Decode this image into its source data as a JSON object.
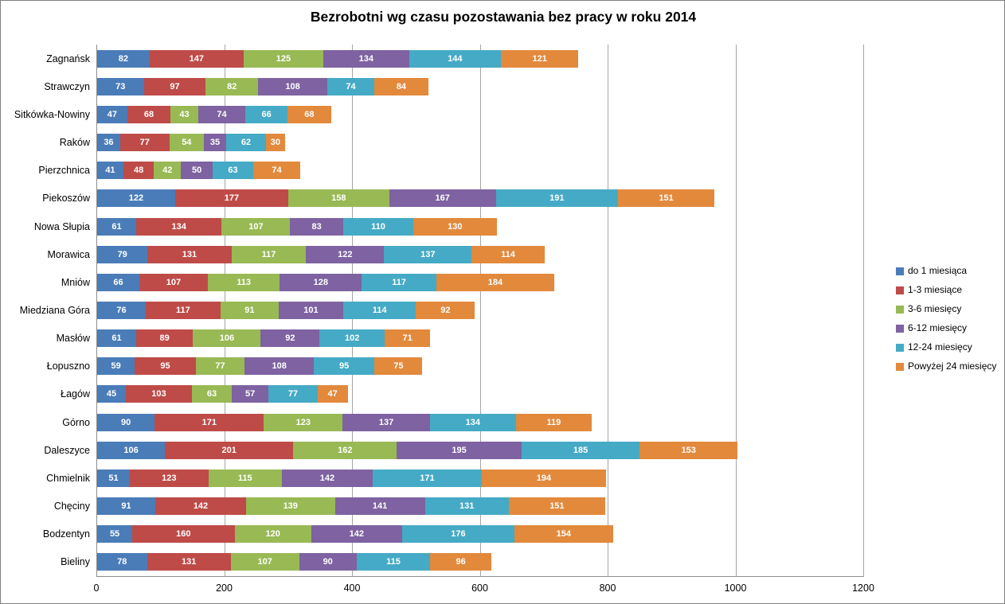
{
  "chart_data": {
    "type": "bar",
    "orientation": "horizontal",
    "stacked": true,
    "title": "Bezrobotni wg czasu pozostawania bez pracy w roku 2014",
    "categories": [
      "Zagnańsk",
      "Strawczyn",
      "Sitkówka-Nowiny",
      "Raków",
      "Pierzchnica",
      "Piekoszów",
      "Nowa Słupia",
      "Morawica",
      "Mniów",
      "Miedziana Góra",
      "Masłów",
      "Łopuszno",
      "Łagów",
      "Górno",
      "Daleszyce",
      "Chmielnik",
      "Chęciny",
      "Bodzentyn",
      "Bieliny"
    ],
    "series": [
      {
        "name": "do 1 miesiąca",
        "color": "#4a7cb8",
        "values": [
          82,
          73,
          47,
          36,
          41,
          122,
          61,
          79,
          66,
          76,
          61,
          59,
          45,
          90,
          106,
          51,
          91,
          55,
          78
        ]
      },
      {
        "name": "1-3 miesiące",
        "color": "#be4b48",
        "values": [
          147,
          97,
          68,
          77,
          48,
          177,
          134,
          131,
          107,
          117,
          89,
          95,
          103,
          171,
          201,
          123,
          142,
          160,
          131
        ]
      },
      {
        "name": "3-6 miesięcy",
        "color": "#98b954",
        "values": [
          125,
          82,
          43,
          54,
          42,
          158,
          107,
          117,
          113,
          91,
          106,
          77,
          63,
          123,
          162,
          115,
          139,
          120,
          107
        ]
      },
      {
        "name": "6-12 miesięcy",
        "color": "#7e62a1",
        "values": [
          134,
          108,
          74,
          35,
          50,
          167,
          83,
          122,
          128,
          101,
          92,
          108,
          57,
          137,
          195,
          142,
          141,
          142,
          90
        ]
      },
      {
        "name": "12-24 miesięcy",
        "color": "#45aac5",
        "values": [
          144,
          74,
          66,
          62,
          63,
          191,
          110,
          137,
          117,
          114,
          102,
          95,
          77,
          134,
          185,
          171,
          131,
          176,
          115
        ]
      },
      {
        "name": "Powyżej 24 miesięcy",
        "color": "#e2893c",
        "values": [
          121,
          84,
          68,
          30,
          74,
          151,
          130,
          114,
          184,
          92,
          71,
          75,
          47,
          119,
          153,
          194,
          151,
          154,
          96
        ]
      }
    ],
    "x_axis": {
      "ticks": [
        0,
        200,
        400,
        600,
        800,
        1000,
        1200
      ],
      "min": 0,
      "max": 1200
    },
    "ylabel": "",
    "xlabel": "",
    "legend_position": "right",
    "gridlines": true,
    "value_labels": "inside-white",
    "colors": {
      "gridline": "#a6a6a6",
      "axis_line": "#8c8c8c",
      "frame_border": "#7f7f7f",
      "background": "#ffffff",
      "title_text": "#000000",
      "value_label_text": "#ffffff"
    }
  }
}
